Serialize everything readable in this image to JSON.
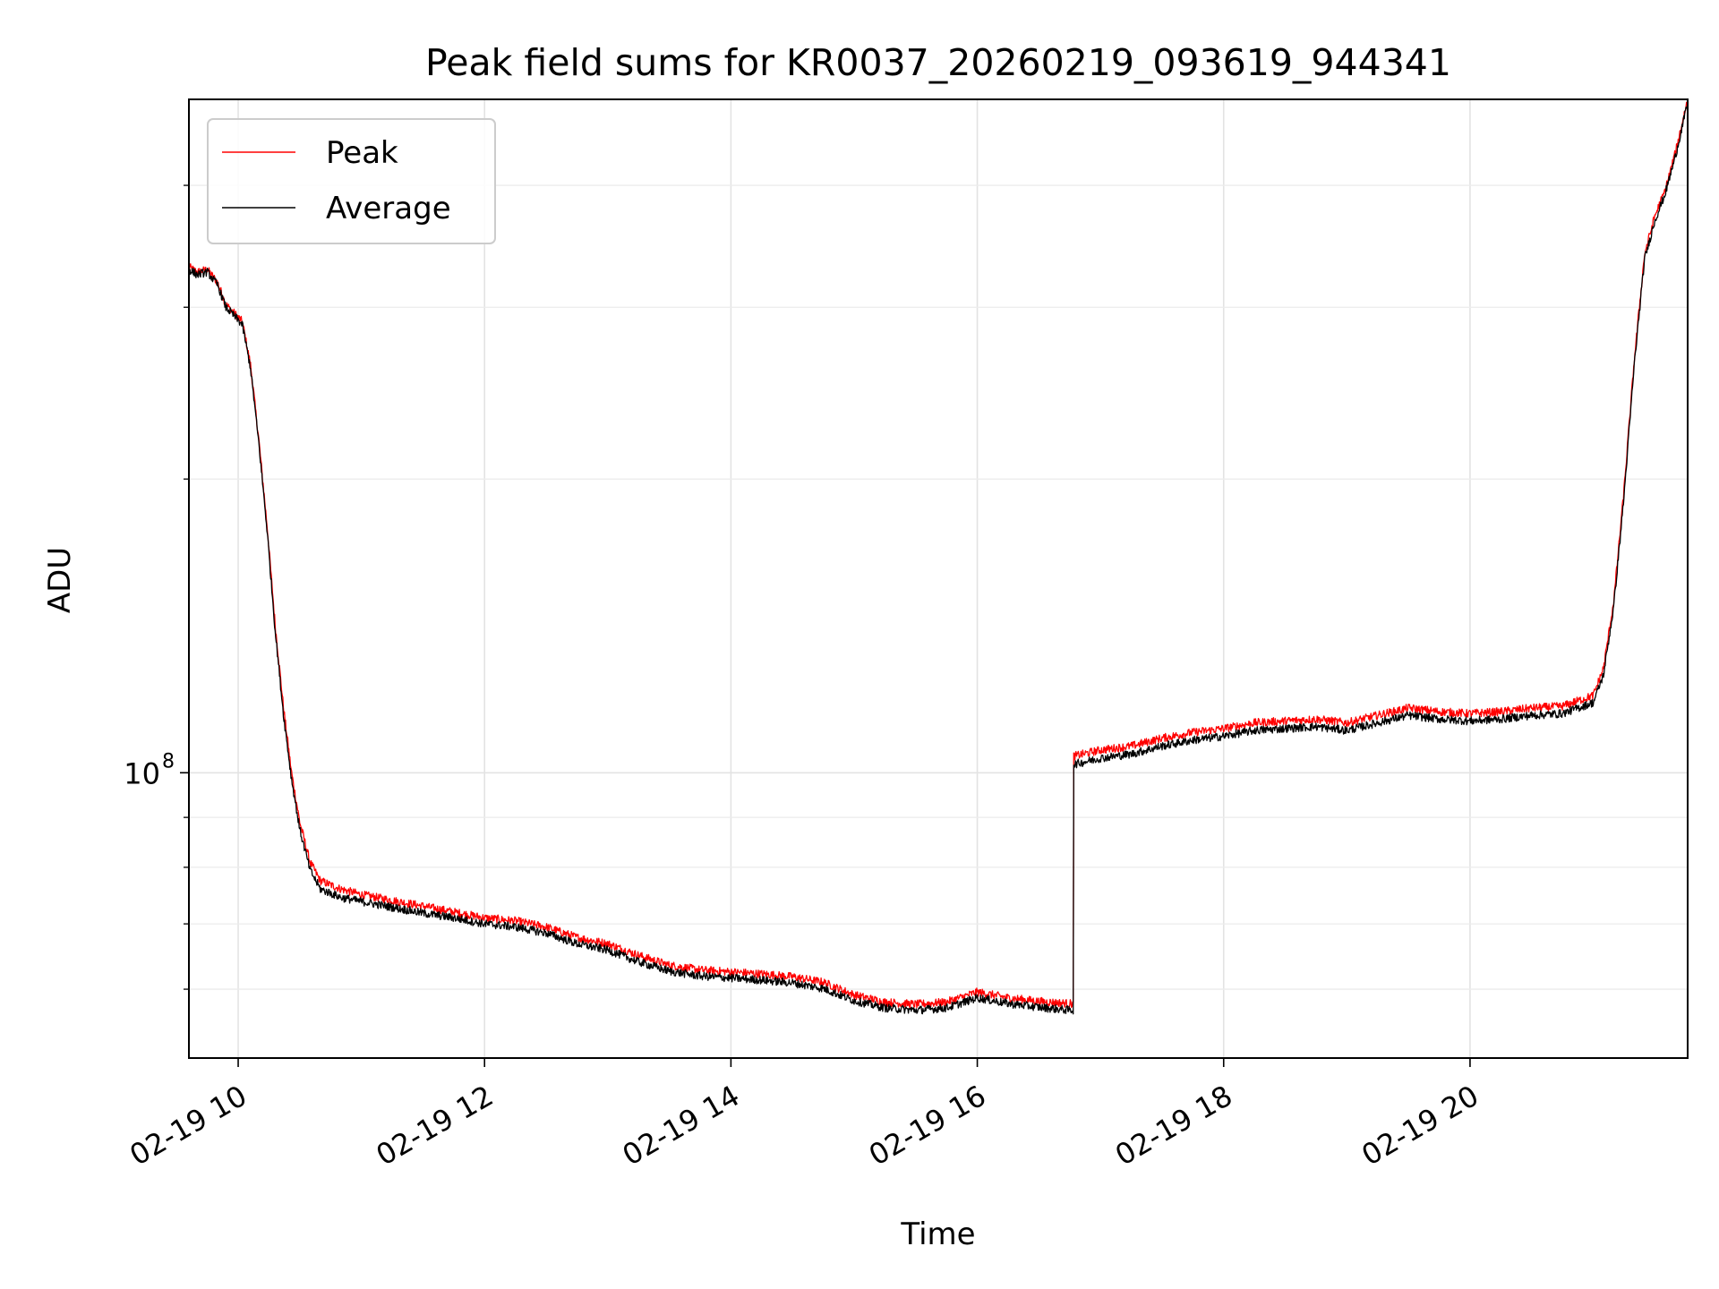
{
  "chart_data": {
    "type": "line",
    "title": "Peak field sums for KR0037_20260219_093619_944341",
    "xlabel": "Time",
    "ylabel": "ADU",
    "x_axis": {
      "type": "datetime",
      "range": [
        "2026-02-19 09:36",
        "2026-02-19 21:46"
      ],
      "ticks": [
        {
          "value": "2026-02-19 10:00",
          "label": "02-19 10"
        },
        {
          "value": "2026-02-19 12:00",
          "label": "02-19 12"
        },
        {
          "value": "2026-02-19 14:00",
          "label": "02-19 14"
        },
        {
          "value": "2026-02-19 16:00",
          "label": "02-19 16"
        },
        {
          "value": "2026-02-19 18:00",
          "label": "02-19 18"
        },
        {
          "value": "2026-02-19 20:00",
          "label": "02-19 20"
        }
      ]
    },
    "y_axis": {
      "scale": "log",
      "range": [
        51000000,
        490000000
      ],
      "major_ticks": [
        {
          "value": 100000000,
          "base": "10",
          "exp": "8"
        }
      ],
      "minor_ticks": [
        60000000,
        70000000,
        80000000,
        90000000,
        200000000,
        300000000,
        400000000
      ]
    },
    "grid": true,
    "legend_position": "top-left",
    "series": [
      {
        "name": "Peak",
        "color": "#ff0000",
        "points": [
          [
            "2026-02-19 09:36",
            330000000
          ],
          [
            "2026-02-19 09:40",
            326000000
          ],
          [
            "2026-02-19 09:45",
            328000000
          ],
          [
            "2026-02-19 09:50",
            318000000
          ],
          [
            "2026-02-19 09:54",
            302000000
          ],
          [
            "2026-02-19 09:58",
            296000000
          ],
          [
            "2026-02-19 10:02",
            290000000
          ],
          [
            "2026-02-19 10:06",
            262000000
          ],
          [
            "2026-02-19 10:10",
            220000000
          ],
          [
            "2026-02-19 10:14",
            180000000
          ],
          [
            "2026-02-19 10:18",
            142000000
          ],
          [
            "2026-02-19 10:22",
            117000000
          ],
          [
            "2026-02-19 10:26",
            100000000
          ],
          [
            "2026-02-19 10:30",
            89000000
          ],
          [
            "2026-02-19 10:35",
            81000000
          ],
          [
            "2026-02-19 10:40",
            77500000
          ],
          [
            "2026-02-19 10:50",
            76000000
          ],
          [
            "2026-02-19 11:00",
            75000000
          ],
          [
            "2026-02-19 11:15",
            74000000
          ],
          [
            "2026-02-19 11:30",
            73000000
          ],
          [
            "2026-02-19 11:45",
            72000000
          ],
          [
            "2026-02-19 12:00",
            71000000
          ],
          [
            "2026-02-19 12:15",
            70500000
          ],
          [
            "2026-02-19 12:30",
            69500000
          ],
          [
            "2026-02-19 12:45",
            67800000
          ],
          [
            "2026-02-19 13:00",
            66800000
          ],
          [
            "2026-02-19 13:15",
            65000000
          ],
          [
            "2026-02-19 13:30",
            63500000
          ],
          [
            "2026-02-19 13:45",
            62800000
          ],
          [
            "2026-02-19 14:00",
            62500000
          ],
          [
            "2026-02-19 14:15",
            62200000
          ],
          [
            "2026-02-19 14:30",
            61800000
          ],
          [
            "2026-02-19 14:45",
            61000000
          ],
          [
            "2026-02-19 15:00",
            59200000
          ],
          [
            "2026-02-19 15:15",
            58200000
          ],
          [
            "2026-02-19 15:30",
            57900000
          ],
          [
            "2026-02-19 15:45",
            58200000
          ],
          [
            "2026-02-19 16:00",
            59600000
          ],
          [
            "2026-02-19 16:15",
            58800000
          ],
          [
            "2026-02-19 16:30",
            58300000
          ],
          [
            "2026-02-19 16:45",
            58000000
          ],
          [
            "2026-02-19 16:47",
            104000000
          ],
          [
            "2026-02-19 17:00",
            105500000
          ],
          [
            "2026-02-19 17:15",
            106500000
          ],
          [
            "2026-02-19 17:30",
            108500000
          ],
          [
            "2026-02-19 17:45",
            110000000
          ],
          [
            "2026-02-19 18:00",
            111000000
          ],
          [
            "2026-02-19 18:15",
            112500000
          ],
          [
            "2026-02-19 18:30",
            113000000
          ],
          [
            "2026-02-19 18:45",
            113500000
          ],
          [
            "2026-02-19 19:00",
            112500000
          ],
          [
            "2026-02-19 19:15",
            114500000
          ],
          [
            "2026-02-19 19:30",
            116500000
          ],
          [
            "2026-02-19 19:45",
            115500000
          ],
          [
            "2026-02-19 20:00",
            115000000
          ],
          [
            "2026-02-19 20:15",
            115500000
          ],
          [
            "2026-02-19 20:30",
            116500000
          ],
          [
            "2026-02-19 20:45",
            117000000
          ],
          [
            "2026-02-19 21:00",
            120000000
          ],
          [
            "2026-02-19 21:05",
            128000000
          ],
          [
            "2026-02-19 21:10",
            150000000
          ],
          [
            "2026-02-19 21:15",
            195000000
          ],
          [
            "2026-02-19 21:20",
            265000000
          ],
          [
            "2026-02-19 21:25",
            340000000
          ],
          [
            "2026-02-19 21:30",
            372000000
          ],
          [
            "2026-02-19 21:35",
            395000000
          ],
          [
            "2026-02-19 21:40",
            432000000
          ],
          [
            "2026-02-19 21:46",
            490000000
          ]
        ]
      },
      {
        "name": "Average",
        "color": "#000000",
        "points": [
          [
            "2026-02-19 09:36",
            328000000
          ],
          [
            "2026-02-19 09:40",
            324000000
          ],
          [
            "2026-02-19 09:45",
            326000000
          ],
          [
            "2026-02-19 09:50",
            316000000
          ],
          [
            "2026-02-19 09:54",
            300000000
          ],
          [
            "2026-02-19 09:58",
            294000000
          ],
          [
            "2026-02-19 10:02",
            288000000
          ],
          [
            "2026-02-19 10:06",
            260000000
          ],
          [
            "2026-02-19 10:10",
            218000000
          ],
          [
            "2026-02-19 10:14",
            178000000
          ],
          [
            "2026-02-19 10:18",
            140000000
          ],
          [
            "2026-02-19 10:22",
            115000000
          ],
          [
            "2026-02-19 10:26",
            98500000
          ],
          [
            "2026-02-19 10:30",
            87500000
          ],
          [
            "2026-02-19 10:35",
            79500000
          ],
          [
            "2026-02-19 10:40",
            76000000
          ],
          [
            "2026-02-19 10:50",
            74500000
          ],
          [
            "2026-02-19 11:00",
            73800000
          ],
          [
            "2026-02-19 11:15",
            72800000
          ],
          [
            "2026-02-19 11:30",
            71800000
          ],
          [
            "2026-02-19 11:45",
            71000000
          ],
          [
            "2026-02-19 12:00",
            70000000
          ],
          [
            "2026-02-19 12:15",
            69500000
          ],
          [
            "2026-02-19 12:30",
            68500000
          ],
          [
            "2026-02-19 12:45",
            66800000
          ],
          [
            "2026-02-19 13:00",
            65800000
          ],
          [
            "2026-02-19 13:15",
            64000000
          ],
          [
            "2026-02-19 13:30",
            62600000
          ],
          [
            "2026-02-19 13:45",
            61900000
          ],
          [
            "2026-02-19 14:00",
            61600000
          ],
          [
            "2026-02-19 14:15",
            61300000
          ],
          [
            "2026-02-19 14:30",
            60900000
          ],
          [
            "2026-02-19 14:45",
            60100000
          ],
          [
            "2026-02-19 15:00",
            58400000
          ],
          [
            "2026-02-19 15:15",
            57400000
          ],
          [
            "2026-02-19 15:30",
            57100000
          ],
          [
            "2026-02-19 15:45",
            57400000
          ],
          [
            "2026-02-19 16:00",
            58800000
          ],
          [
            "2026-02-19 16:15",
            58000000
          ],
          [
            "2026-02-19 16:30",
            57500000
          ],
          [
            "2026-02-19 16:45",
            57100000
          ],
          [
            "2026-02-19 16:47",
            102000000
          ],
          [
            "2026-02-19 17:00",
            103500000
          ],
          [
            "2026-02-19 17:15",
            104500000
          ],
          [
            "2026-02-19 17:30",
            106500000
          ],
          [
            "2026-02-19 17:45",
            108000000
          ],
          [
            "2026-02-19 18:00",
            109000000
          ],
          [
            "2026-02-19 18:15",
            110500000
          ],
          [
            "2026-02-19 18:30",
            111000000
          ],
          [
            "2026-02-19 18:45",
            111500000
          ],
          [
            "2026-02-19 19:00",
            110500000
          ],
          [
            "2026-02-19 19:15",
            112500000
          ],
          [
            "2026-02-19 19:30",
            114500000
          ],
          [
            "2026-02-19 19:45",
            113500000
          ],
          [
            "2026-02-19 20:00",
            113000000
          ],
          [
            "2026-02-19 20:15",
            113500000
          ],
          [
            "2026-02-19 20:30",
            114500000
          ],
          [
            "2026-02-19 20:45",
            115000000
          ],
          [
            "2026-02-19 21:00",
            118000000
          ],
          [
            "2026-02-19 21:05",
            126000000
          ],
          [
            "2026-02-19 21:10",
            148000000
          ],
          [
            "2026-02-19 21:15",
            192000000
          ],
          [
            "2026-02-19 21:20",
            262000000
          ],
          [
            "2026-02-19 21:25",
            336000000
          ],
          [
            "2026-02-19 21:30",
            368000000
          ],
          [
            "2026-02-19 21:35",
            392000000
          ],
          [
            "2026-02-19 21:40",
            428000000
          ],
          [
            "2026-02-19 21:46",
            486000000
          ]
        ]
      }
    ]
  }
}
